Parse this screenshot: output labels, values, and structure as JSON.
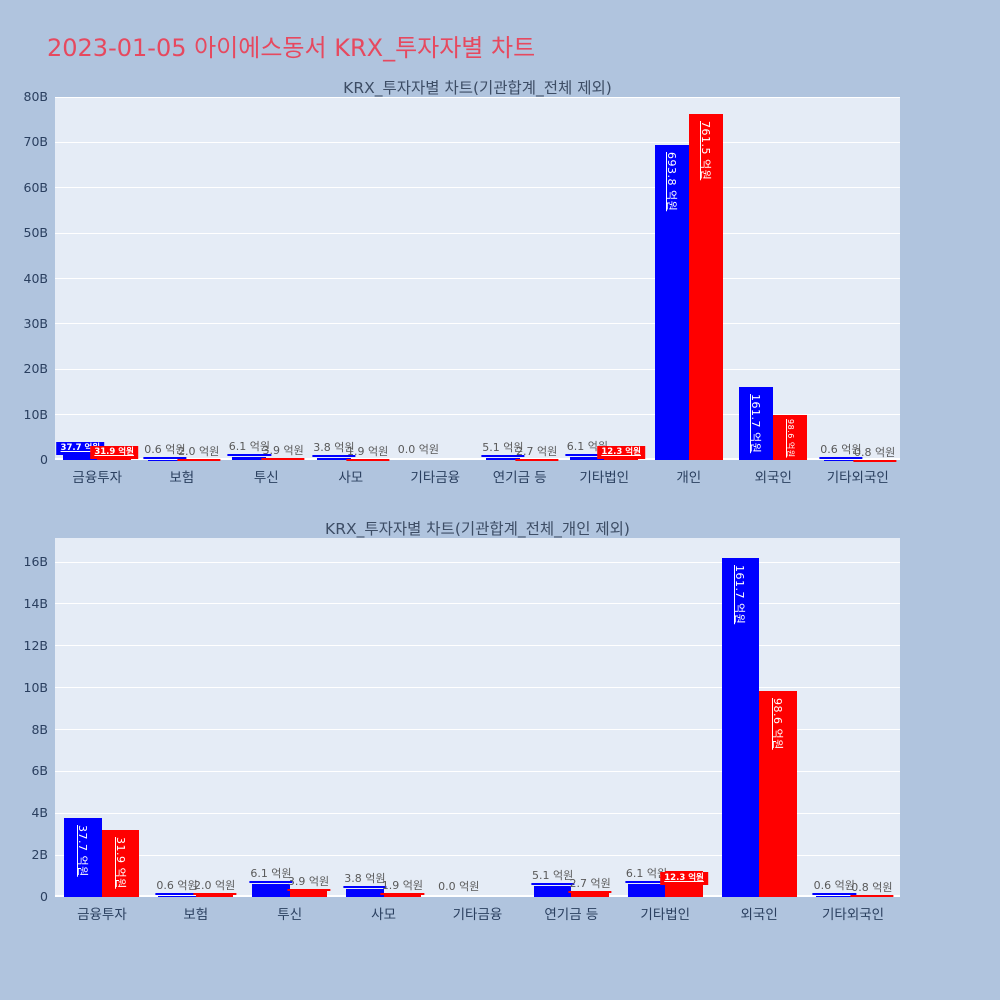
{
  "page": {
    "title": "2023-01-05 아이에스동서 KRX_투자자별 차트",
    "colors": {
      "background": "#b0c4de",
      "plot_background": "#e5ecf6",
      "gridline": "#ffffff",
      "page_title": "#e6495f",
      "axis_text": "#2a3f5f",
      "value_label_text": "#595959",
      "series_blue": "#0000ff",
      "series_red": "#ff0000"
    }
  },
  "chart_data": [
    {
      "type": "bar",
      "title": "KRX_투자자별 차트(기관합계_전체 제외)",
      "unit": "억원",
      "categories": [
        "금융투자",
        "보험",
        "투신",
        "사모",
        "기타금융",
        "연기금 등",
        "기타법인",
        "개인",
        "외국인",
        "기타외국인"
      ],
      "series": [
        {
          "name": "blue",
          "color": "#0000ff",
          "values_eokwon": [
            37.7,
            0.6,
            6.1,
            3.8,
            0.0,
            5.1,
            6.1,
            693.8,
            161.7,
            0.6
          ],
          "label_styles": [
            "box",
            "plain",
            "plain",
            "plain",
            "plain-noline",
            "plain",
            "plain",
            "rotated",
            "rotated",
            "plain"
          ]
        },
        {
          "name": "red",
          "color": "#ff0000",
          "values_eokwon": [
            31.9,
            2.0,
            3.9,
            1.9,
            null,
            2.7,
            12.3,
            761.5,
            98.6,
            0.8
          ],
          "label_styles": [
            "box",
            "plain",
            "plain",
            "plain",
            "none",
            "plain",
            "box",
            "rotated",
            "rotated-small",
            "plain"
          ]
        }
      ],
      "yaxis": {
        "ticks": [
          "0",
          "10B",
          "20B",
          "30B",
          "40B",
          "50B",
          "60B",
          "70B",
          "80B"
        ],
        "tick_step_b": 10,
        "ylim_b": [
          0,
          80
        ]
      },
      "legend": "none",
      "grid": true
    },
    {
      "type": "bar",
      "title": "KRX_투자자별 차트(기관합계_전체_개인 제외)",
      "unit": "억원",
      "categories": [
        "금융투자",
        "보험",
        "투신",
        "사모",
        "기타금융",
        "연기금 등",
        "기타법인",
        "외국인",
        "기타외국인"
      ],
      "series": [
        {
          "name": "blue",
          "color": "#0000ff",
          "values_eokwon": [
            37.7,
            0.6,
            6.1,
            3.8,
            0.0,
            5.1,
            6.1,
            161.7,
            0.6
          ],
          "label_styles": [
            "rotated",
            "plain",
            "plain",
            "plain",
            "plain-noline",
            "plain",
            "plain",
            "rotated",
            "plain"
          ]
        },
        {
          "name": "red",
          "color": "#ff0000",
          "values_eokwon": [
            31.9,
            2.0,
            3.9,
            1.9,
            null,
            2.7,
            12.3,
            98.6,
            0.8
          ],
          "label_styles": [
            "rotated",
            "plain",
            "plain",
            "plain",
            "none",
            "plain",
            "box",
            "rotated",
            "plain"
          ]
        }
      ],
      "yaxis": {
        "ticks": [
          "0",
          "2B",
          "4B",
          "6B",
          "8B",
          "10B",
          "12B",
          "14B",
          "16B"
        ],
        "tick_step_b": 2,
        "ylim_b": [
          0,
          17
        ]
      },
      "legend": "none",
      "grid": true
    }
  ]
}
